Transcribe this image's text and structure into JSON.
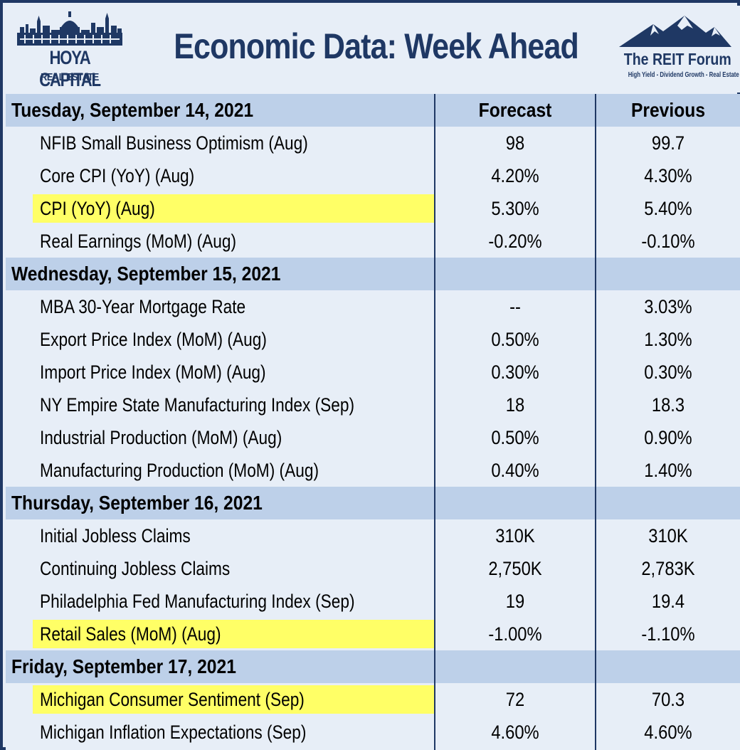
{
  "header": {
    "title": "Economic Data: Week Ahead",
    "logo_left": {
      "name": "HOYA CAPITAL",
      "sub": "REAL ESTATE"
    },
    "logo_right": {
      "name": "The REIT Forum",
      "tagline": "High Yield - Dividend Growth - Real Estate"
    }
  },
  "colors": {
    "navy": "#1f3864",
    "day_band": "#bdd0e9",
    "panel": "#e7eef7",
    "highlight": "#ffff66"
  },
  "table": {
    "columns": {
      "forecast": "Forecast",
      "previous": "Previous"
    },
    "sections": [
      {
        "day": "Tuesday, September 14, 2021",
        "rows": [
          {
            "label": "NFIB Small Business Optimism (Aug)",
            "forecast": "98",
            "previous": "99.7"
          },
          {
            "label": "Core CPI (YoY) (Aug)",
            "forecast": "4.20%",
            "previous": "4.30%"
          },
          {
            "label": "CPI (YoY) (Aug)",
            "forecast": "5.30%",
            "previous": "5.40%",
            "highlight": true
          },
          {
            "label": "Real Earnings (MoM) (Aug)",
            "forecast": "-0.20%",
            "previous": "-0.10%"
          }
        ]
      },
      {
        "day": "Wednesday, September 15, 2021",
        "rows": [
          {
            "label": "MBA 30-Year Mortgage Rate",
            "forecast": "--",
            "previous": "3.03%"
          },
          {
            "label": "Export Price Index (MoM) (Aug)",
            "forecast": "0.50%",
            "previous": "1.30%"
          },
          {
            "label": "Import Price Index (MoM) (Aug)",
            "forecast": "0.30%",
            "previous": "0.30%"
          },
          {
            "label": "NY Empire State Manufacturing Index (Sep)",
            "forecast": "18",
            "previous": "18.3"
          },
          {
            "label": "Industrial Production (MoM) (Aug)",
            "forecast": "0.50%",
            "previous": "0.90%"
          },
          {
            "label": "Manufacturing Production (MoM) (Aug)",
            "forecast": "0.40%",
            "previous": "1.40%"
          }
        ]
      },
      {
        "day": "Thursday, September 16, 2021",
        "rows": [
          {
            "label": "Initial Jobless Claims",
            "forecast": "310K",
            "previous": "310K"
          },
          {
            "label": "Continuing Jobless Claims",
            "forecast": "2,750K",
            "previous": "2,783K"
          },
          {
            "label": "Philadelphia Fed Manufacturing Index (Sep)",
            "forecast": "19",
            "previous": "19.4"
          },
          {
            "label": "Retail Sales (MoM) (Aug)",
            "forecast": "-1.00%",
            "previous": "-1.10%",
            "highlight": true
          }
        ]
      },
      {
        "day": "Friday, September 17, 2021",
        "rows": [
          {
            "label": "Michigan Consumer Sentiment (Sep)",
            "forecast": "72",
            "previous": "70.3",
            "highlight": true
          },
          {
            "label": "Michigan Inflation Expectations (Sep)",
            "forecast": "4.60%",
            "previous": "4.60%"
          }
        ]
      }
    ]
  }
}
